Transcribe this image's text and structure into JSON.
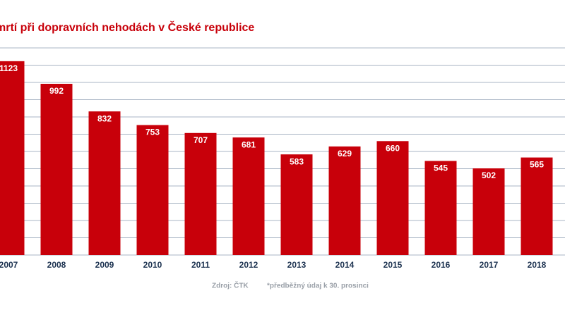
{
  "chart_data": {
    "type": "bar",
    "title": "mrtí při dopravních nehodách v České republice",
    "categories": [
      "2007",
      "2008",
      "2009",
      "2010",
      "2011",
      "2012",
      "2013",
      "2014",
      "2015",
      "2016",
      "2017",
      "2018"
    ],
    "values": [
      1123,
      992,
      832,
      753,
      707,
      681,
      583,
      629,
      660,
      545,
      502,
      565
    ],
    "color": "#c8000a",
    "ylim": [
      0,
      1200
    ],
    "yticks": [
      0,
      100,
      200,
      300,
      400,
      500,
      600,
      700,
      800,
      900,
      1000,
      1100,
      1200
    ],
    "grid": true,
    "source": "Zdroj: ČTK",
    "note": "*předběžný údaj k 30. prosinci"
  }
}
